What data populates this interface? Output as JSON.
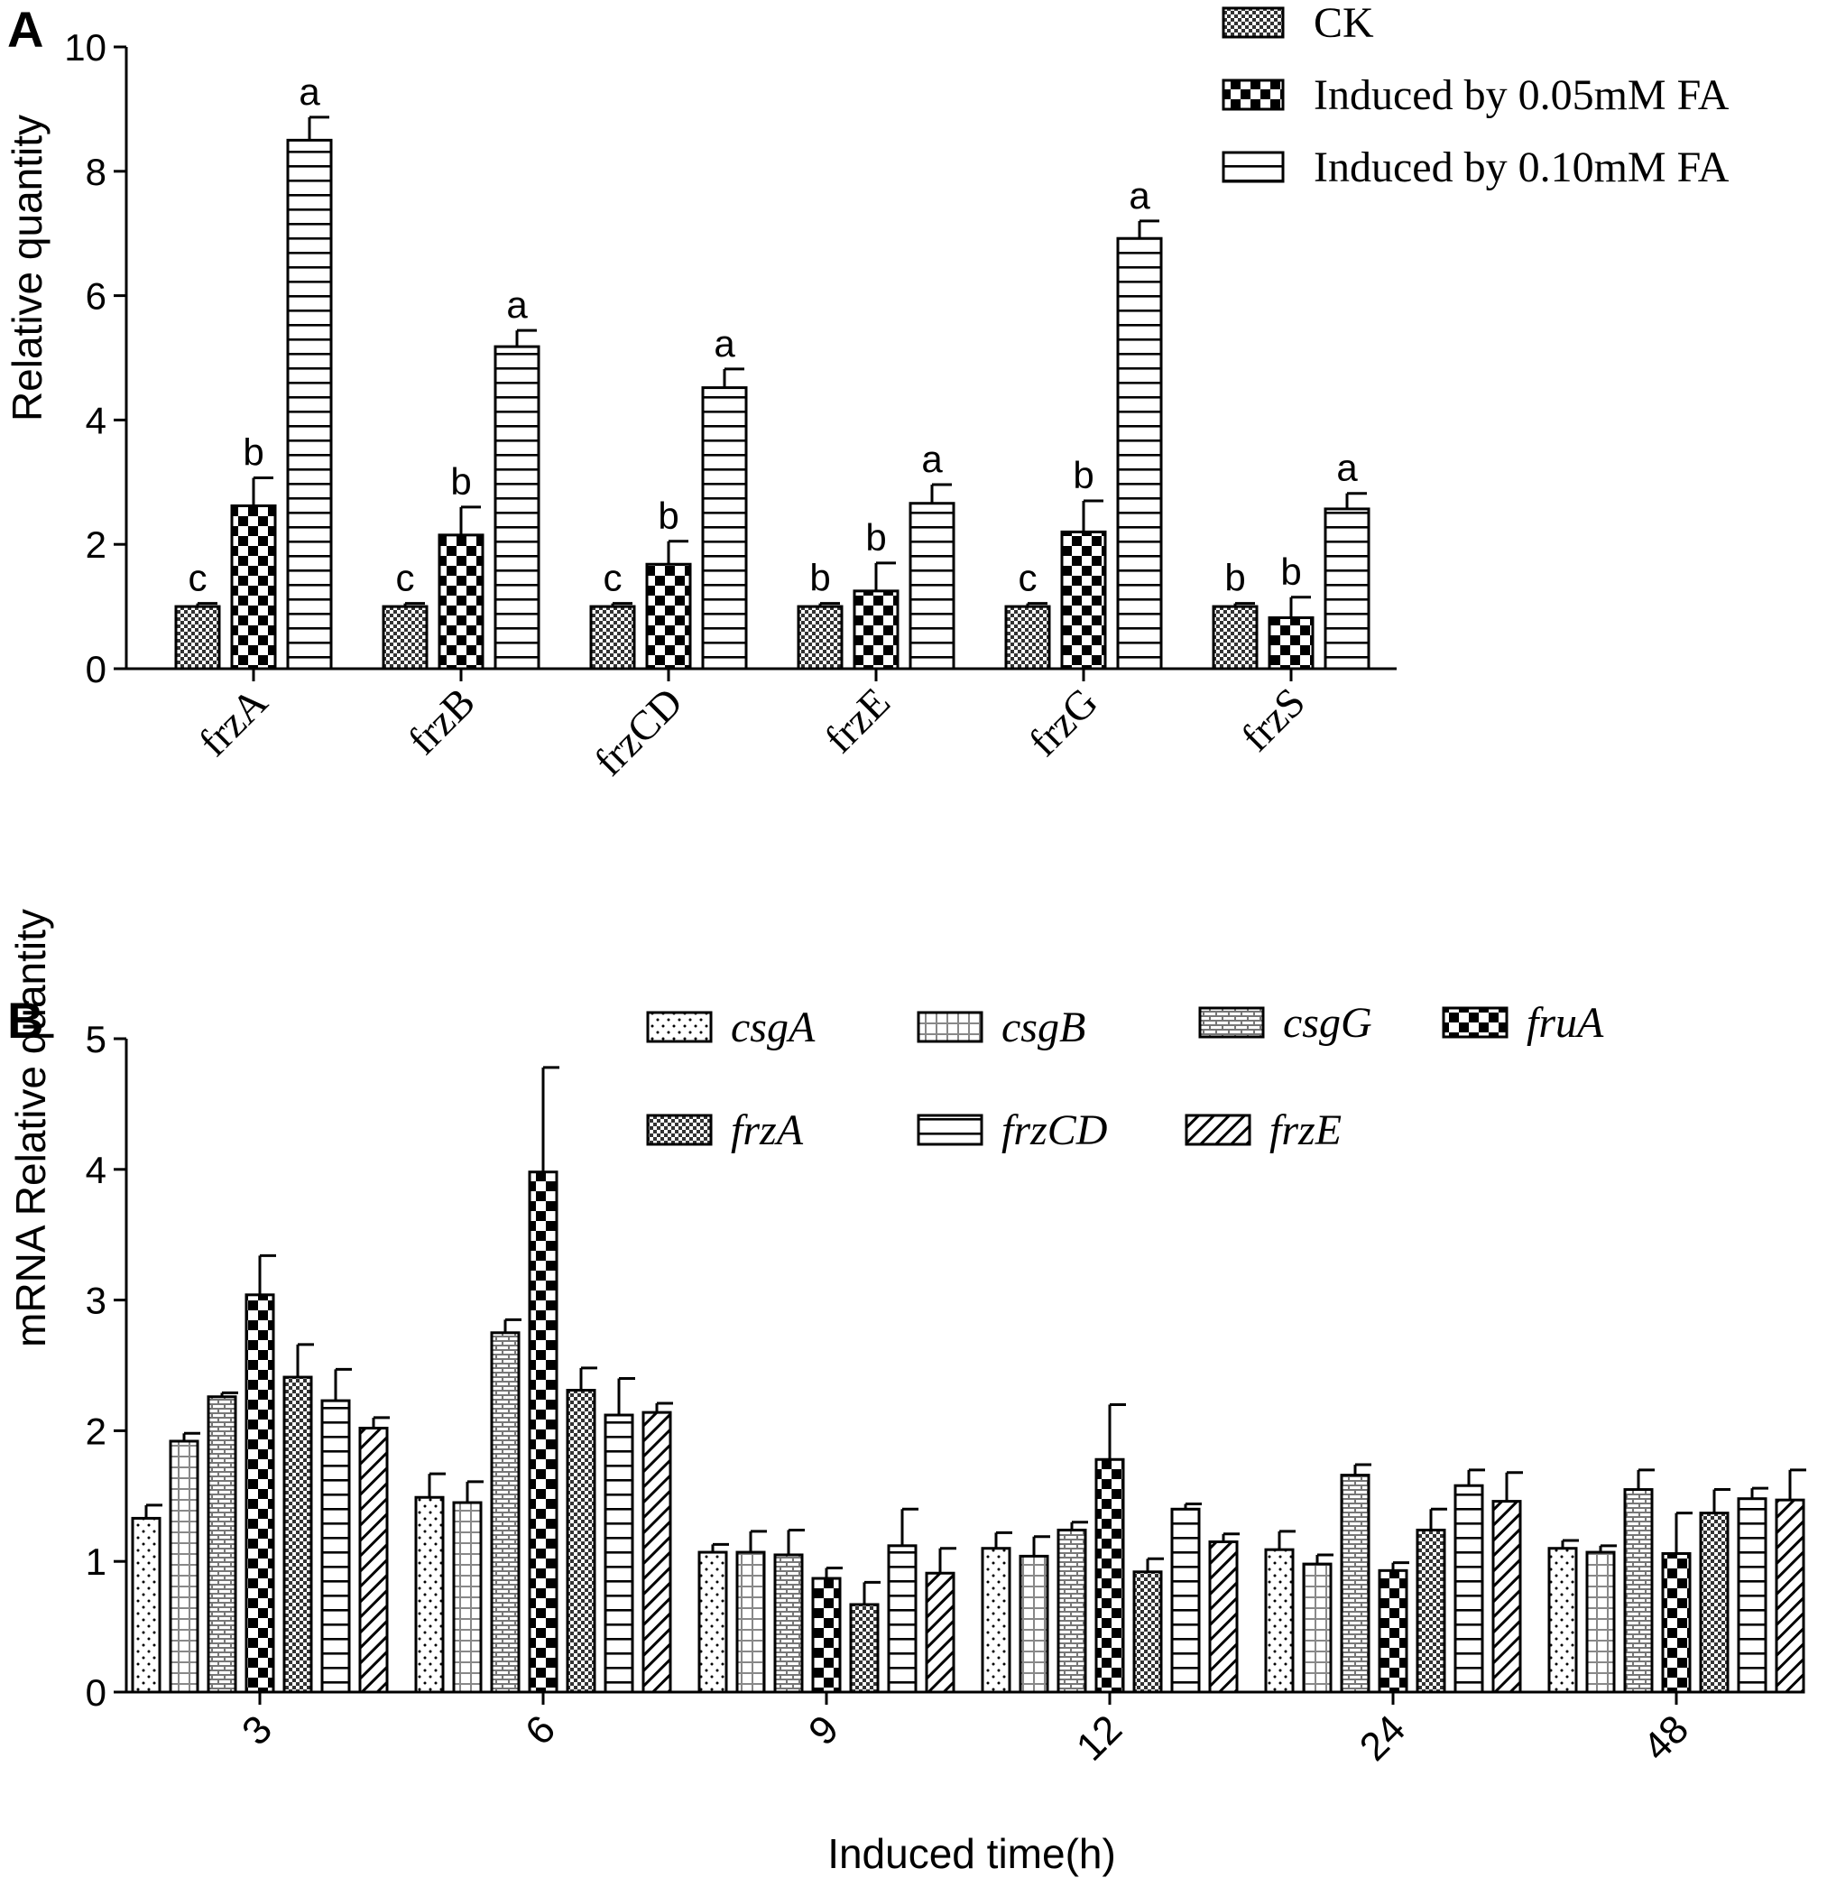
{
  "chart_data": [
    {
      "panel": "A",
      "type": "bar",
      "title": "",
      "ylabel": "Relative quantity",
      "xlabel": "",
      "ylim": [
        0,
        10
      ],
      "yticks": [
        0,
        2,
        4,
        6,
        8,
        10
      ],
      "categories": [
        "frzA",
        "frzB",
        "frzCD",
        "frzE",
        "frzG",
        "frzS"
      ],
      "legend_position": "top-right",
      "series": [
        {
          "name": "CK",
          "pattern": "fine-check",
          "values": [
            1.0,
            1.0,
            1.0,
            1.0,
            1.0,
            1.0
          ],
          "errors": [
            0.05,
            0.05,
            0.05,
            0.05,
            0.05,
            0.05
          ],
          "letters": [
            "c",
            "c",
            "c",
            "b",
            "c",
            "b"
          ]
        },
        {
          "name": "Induced by 0.05mM FA",
          "pattern": "coarse-check",
          "values": [
            2.62,
            2.15,
            1.68,
            1.25,
            2.2,
            0.82
          ],
          "errors": [
            0.45,
            0.45,
            0.37,
            0.45,
            0.5,
            0.33
          ],
          "letters": [
            "b",
            "b",
            "b",
            "b",
            "b",
            "b"
          ]
        },
        {
          "name": "Induced by 0.10mM FA",
          "pattern": "horizontal-lines",
          "values": [
            8.5,
            5.18,
            4.52,
            2.66,
            6.92,
            2.57
          ],
          "errors": [
            0.37,
            0.26,
            0.3,
            0.3,
            0.28,
            0.25
          ],
          "letters": [
            "a",
            "a",
            "a",
            "a",
            "a",
            "a"
          ]
        }
      ]
    },
    {
      "panel": "B",
      "type": "bar",
      "title": "",
      "ylabel": "mRNA Relative quantity",
      "xlabel": "Induced time(h)",
      "ylim": [
        0,
        5
      ],
      "yticks": [
        0,
        1,
        2,
        3,
        4,
        5
      ],
      "categories": [
        "3",
        "6",
        "9",
        "12",
        "24",
        "48"
      ],
      "legend_position": "top-right",
      "series": [
        {
          "name": "csgA",
          "pattern": "dots",
          "values": [
            1.33,
            1.49,
            1.07,
            1.1,
            1.09,
            1.1
          ],
          "errors": [
            0.1,
            0.18,
            0.06,
            0.12,
            0.14,
            0.06
          ]
        },
        {
          "name": "csgB",
          "pattern": "grid",
          "values": [
            1.92,
            1.45,
            1.07,
            1.04,
            0.98,
            1.07
          ],
          "errors": [
            0.06,
            0.16,
            0.16,
            0.15,
            0.07,
            0.05
          ]
        },
        {
          "name": "csgG",
          "pattern": "brick",
          "values": [
            2.26,
            2.75,
            1.05,
            1.24,
            1.66,
            1.55
          ],
          "errors": [
            0.03,
            0.1,
            0.19,
            0.06,
            0.08,
            0.15
          ]
        },
        {
          "name": "fruA",
          "pattern": "coarse-check",
          "values": [
            3.04,
            3.98,
            0.87,
            1.78,
            0.93,
            1.06
          ],
          "errors": [
            0.3,
            0.8,
            0.08,
            0.42,
            0.06,
            0.31
          ]
        },
        {
          "name": "frzA",
          "pattern": "fine-check",
          "values": [
            2.41,
            2.31,
            0.67,
            0.92,
            1.24,
            1.37
          ],
          "errors": [
            0.25,
            0.17,
            0.17,
            0.1,
            0.16,
            0.18
          ]
        },
        {
          "name": "frzCD",
          "pattern": "horizontal-lines",
          "values": [
            2.23,
            2.12,
            1.12,
            1.4,
            1.58,
            1.48
          ],
          "errors": [
            0.24,
            0.28,
            0.28,
            0.04,
            0.12,
            0.08
          ]
        },
        {
          "name": "frzE",
          "pattern": "diagonal",
          "values": [
            2.02,
            2.14,
            0.91,
            1.15,
            1.46,
            1.47
          ],
          "errors": [
            0.08,
            0.07,
            0.19,
            0.06,
            0.22,
            0.23
          ]
        }
      ]
    }
  ]
}
